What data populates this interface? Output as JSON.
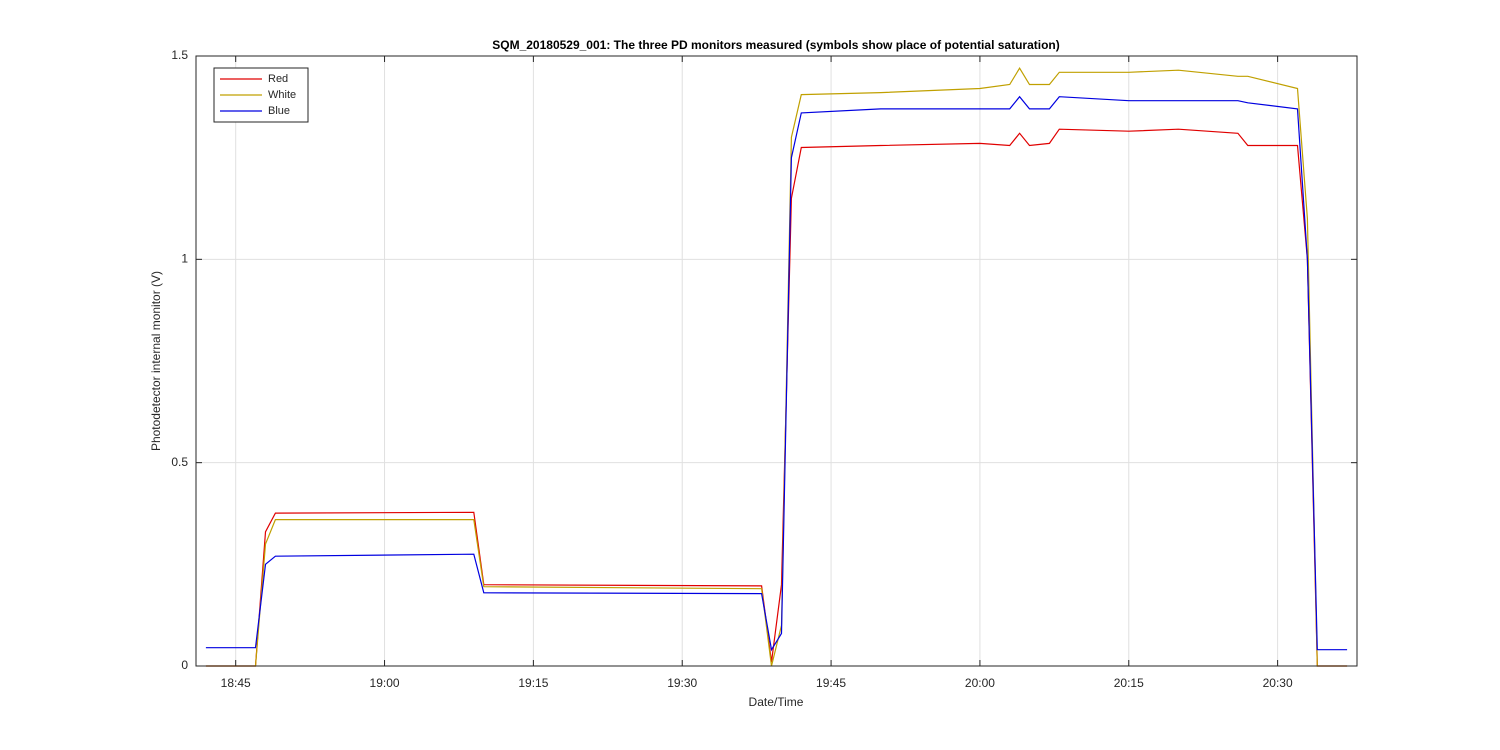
{
  "chart_data": {
    "type": "line",
    "title": "SQM_20180529_001: The three PD monitors measured (symbols show place of potential saturation)",
    "xlabel": "Date/Time",
    "ylabel": "Photodetector internal monitor (V)",
    "x": [
      "18:42",
      "18:47",
      "18:48",
      "18:49",
      "19:09",
      "19:10",
      "19:38",
      "19:39",
      "19:40",
      "19:41",
      "19:42",
      "19:50",
      "20:00",
      "20:03",
      "20:04",
      "20:05",
      "20:07",
      "20:08",
      "20:15",
      "20:20",
      "20:26",
      "20:27",
      "20:32",
      "20:33",
      "20:34",
      "20:37"
    ],
    "series": [
      {
        "name": "Red",
        "color": "#e00000",
        "values": [
          0,
          0,
          0.33,
          0.376,
          0.378,
          0.2,
          0.197,
          0.01,
          0.2,
          1.15,
          1.275,
          1.28,
          1.285,
          1.28,
          1.31,
          1.28,
          1.285,
          1.32,
          1.315,
          1.32,
          1.31,
          1.28,
          1.28,
          1.0,
          0,
          0
        ]
      },
      {
        "name": "White",
        "color": "#c0a000",
        "values": [
          0,
          0,
          0.3,
          0.36,
          0.36,
          0.195,
          0.19,
          0,
          0.1,
          1.3,
          1.405,
          1.41,
          1.42,
          1.43,
          1.47,
          1.43,
          1.43,
          1.46,
          1.46,
          1.465,
          1.45,
          1.45,
          1.42,
          1.1,
          0,
          0
        ]
      },
      {
        "name": "Blue",
        "color": "#0000e0",
        "values": [
          0.045,
          0.045,
          0.25,
          0.27,
          0.275,
          0.18,
          0.178,
          0.04,
          0.08,
          1.25,
          1.36,
          1.37,
          1.37,
          1.37,
          1.4,
          1.37,
          1.37,
          1.4,
          1.39,
          1.39,
          1.39,
          1.385,
          1.37,
          1.0,
          0.04,
          0.04
        ]
      }
    ],
    "xlim": [
      "18:41",
      "20:38"
    ],
    "xticks": [
      "18:45",
      "19:00",
      "19:15",
      "19:30",
      "19:45",
      "20:00",
      "20:15",
      "20:30"
    ],
    "ylim": [
      0,
      1.5
    ],
    "yticks": [
      0,
      0.5,
      1,
      1.5
    ],
    "grid": true,
    "legend": "top-left"
  }
}
